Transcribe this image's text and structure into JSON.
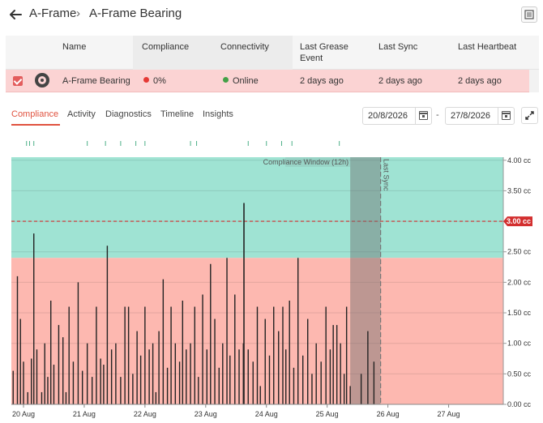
{
  "header": {
    "breadcrumb_parent": "A-Frame",
    "breadcrumb_separator": "›",
    "breadcrumb_current": "A-Frame Bearing"
  },
  "table": {
    "columns": [
      "Name",
      "Compliance",
      "Connectivity",
      "Last Grease Event",
      "Last Sync",
      "Last Heartbeat"
    ],
    "row": {
      "name": "A-Frame Bearing",
      "compliance": "0%",
      "compliance_color": "#e53935",
      "connectivity": "Online",
      "connectivity_color": "#43a047",
      "last_grease_event": "2 days ago",
      "last_sync": "2 days ago",
      "last_heartbeat": "2 days ago"
    }
  },
  "tabs": [
    "Compliance",
    "Activity",
    "Diagnostics",
    "Timeline",
    "Insights"
  ],
  "active_tab": "Compliance",
  "date_range": {
    "start": "20/8/2026",
    "separator": "-",
    "end": "27/8/2026"
  },
  "colors": {
    "compliant_zone": "#9fe3d3",
    "noncompliant_zone": "#fdb8b0",
    "target_line": "#d32f2f",
    "accent": "#e0523f"
  },
  "chart_data": {
    "type": "bar",
    "x_ticks": [
      "20 Aug",
      "21 Aug",
      "22 Aug",
      "23 Aug",
      "24 Aug",
      "25 Aug",
      "26 Aug",
      "27 Aug"
    ],
    "y_ticks": [
      "0.00 cc",
      "0.50 cc",
      "1.00 cc",
      "1.50 cc",
      "2.00 cc",
      "2.50 cc",
      "3.00 cc",
      "3.50 cc",
      "4.00 cc"
    ],
    "ylim": [
      0,
      4.05
    ],
    "xlim": [
      0,
      8.1
    ],
    "target": 3.0,
    "target_label": "3.00 cc",
    "compliant_threshold": 2.4,
    "compliance_window": {
      "label": "Compliance Window (12h)",
      "start": 5.58,
      "end": 6.08
    },
    "last_sync": {
      "label": "Last Sync",
      "x": 6.08
    },
    "event_ticks": [
      0.25,
      0.3,
      0.37,
      1.25,
      1.55,
      1.8,
      2.05,
      2.2,
      2.95,
      3.05,
      3.9,
      4.2,
      4.45,
      4.62,
      5.4
    ],
    "bars": [
      {
        "x": 0.03,
        "y": 0.55
      },
      {
        "x": 0.1,
        "y": 2.1
      },
      {
        "x": 0.15,
        "y": 1.4
      },
      {
        "x": 0.2,
        "y": 0.7
      },
      {
        "x": 0.27,
        "y": 0.2
      },
      {
        "x": 0.33,
        "y": 0.75
      },
      {
        "x": 0.37,
        "y": 2.8
      },
      {
        "x": 0.42,
        "y": 0.9
      },
      {
        "x": 0.5,
        "y": 0.2
      },
      {
        "x": 0.55,
        "y": 1.0
      },
      {
        "x": 0.6,
        "y": 0.45
      },
      {
        "x": 0.65,
        "y": 1.7
      },
      {
        "x": 0.7,
        "y": 0.65
      },
      {
        "x": 0.78,
        "y": 1.3
      },
      {
        "x": 0.85,
        "y": 1.1
      },
      {
        "x": 0.9,
        "y": 0.2
      },
      {
        "x": 0.95,
        "y": 1.6
      },
      {
        "x": 1.02,
        "y": 0.7
      },
      {
        "x": 1.1,
        "y": 2.0
      },
      {
        "x": 1.17,
        "y": 0.55
      },
      {
        "x": 1.25,
        "y": 1.0
      },
      {
        "x": 1.33,
        "y": 0.45
      },
      {
        "x": 1.4,
        "y": 1.6
      },
      {
        "x": 1.47,
        "y": 0.75
      },
      {
        "x": 1.52,
        "y": 0.65
      },
      {
        "x": 1.58,
        "y": 2.6
      },
      {
        "x": 1.65,
        "y": 0.9
      },
      {
        "x": 1.72,
        "y": 1.0
      },
      {
        "x": 1.8,
        "y": 0.45
      },
      {
        "x": 1.87,
        "y": 1.6
      },
      {
        "x": 1.93,
        "y": 1.6
      },
      {
        "x": 2.0,
        "y": 0.5
      },
      {
        "x": 2.07,
        "y": 1.2
      },
      {
        "x": 2.13,
        "y": 0.8
      },
      {
        "x": 2.2,
        "y": 1.6
      },
      {
        "x": 2.27,
        "y": 0.9
      },
      {
        "x": 2.33,
        "y": 1.0
      },
      {
        "x": 2.38,
        "y": 0.2
      },
      {
        "x": 2.43,
        "y": 1.2
      },
      {
        "x": 2.5,
        "y": 2.05
      },
      {
        "x": 2.57,
        "y": 0.6
      },
      {
        "x": 2.63,
        "y": 1.6
      },
      {
        "x": 2.7,
        "y": 1.0
      },
      {
        "x": 2.77,
        "y": 0.7
      },
      {
        "x": 2.82,
        "y": 1.7
      },
      {
        "x": 2.88,
        "y": 0.9
      },
      {
        "x": 2.95,
        "y": 1.0
      },
      {
        "x": 3.02,
        "y": 1.6
      },
      {
        "x": 3.08,
        "y": 0.45
      },
      {
        "x": 3.15,
        "y": 1.8
      },
      {
        "x": 3.22,
        "y": 0.9
      },
      {
        "x": 3.28,
        "y": 2.3
      },
      {
        "x": 3.35,
        "y": 1.4
      },
      {
        "x": 3.42,
        "y": 0.6
      },
      {
        "x": 3.48,
        "y": 1.0
      },
      {
        "x": 3.55,
        "y": 2.4
      },
      {
        "x": 3.6,
        "y": 0.8
      },
      {
        "x": 3.68,
        "y": 1.8
      },
      {
        "x": 3.75,
        "y": 0.9
      },
      {
        "x": 3.82,
        "y": 1.0
      },
      {
        "x": 3.9,
        "y": 0.9
      },
      {
        "x": 3.98,
        "y": 0.7
      },
      {
        "x": 4.05,
        "y": 1.6
      },
      {
        "x": 4.1,
        "y": 0.3
      },
      {
        "x": 4.18,
        "y": 1.4
      },
      {
        "x": 4.25,
        "y": 0.8
      },
      {
        "x": 4.32,
        "y": 1.6
      },
      {
        "x": 4.4,
        "y": 1.2
      },
      {
        "x": 4.47,
        "y": 1.6
      },
      {
        "x": 4.52,
        "y": 0.9
      },
      {
        "x": 4.58,
        "y": 1.7
      },
      {
        "x": 4.65,
        "y": 0.6
      },
      {
        "x": 4.72,
        "y": 2.4
      },
      {
        "x": 4.8,
        "y": 0.8
      },
      {
        "x": 4.88,
        "y": 1.4
      },
      {
        "x": 4.95,
        "y": 0.5
      },
      {
        "x": 5.02,
        "y": 1.0
      },
      {
        "x": 5.1,
        "y": 0.7
      },
      {
        "x": 5.18,
        "y": 1.6
      },
      {
        "x": 5.25,
        "y": 0.9
      },
      {
        "x": 5.3,
        "y": 1.3
      },
      {
        "x": 5.36,
        "y": 1.3
      },
      {
        "x": 5.42,
        "y": 1.0
      },
      {
        "x": 5.48,
        "y": 0.5
      },
      {
        "x": 5.52,
        "y": 1.6
      },
      {
        "x": 5.58,
        "y": 0.3
      },
      {
        "x": 5.76,
        "y": 0.5
      },
      {
        "x": 5.87,
        "y": 1.2
      },
      {
        "x": 5.97,
        "y": 0.7
      }
    ],
    "tall_bar": {
      "x": 3.83,
      "y": 3.3
    }
  }
}
